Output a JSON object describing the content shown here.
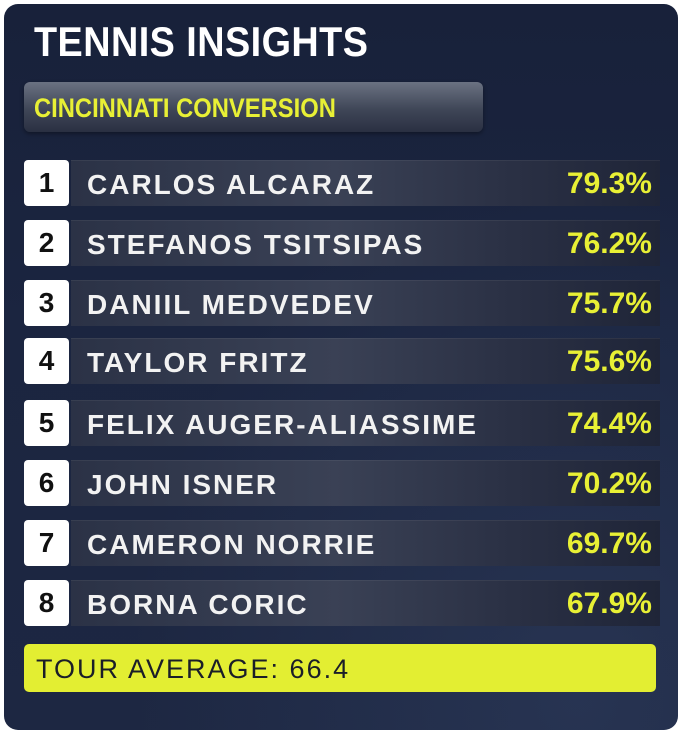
{
  "header": {
    "title": "TENNIS INSIGHTS",
    "subtitle": "CINCINNATI CONVERSION"
  },
  "rankings": [
    {
      "rank": "1",
      "name": "CARLOS ALCARAZ",
      "pct": "79.3%"
    },
    {
      "rank": "2",
      "name": "STEFANOS TSITSIPAS",
      "pct": "76.2%"
    },
    {
      "rank": "3",
      "name": "DANIIL MEDVEDEV",
      "pct": "75.7%"
    },
    {
      "rank": "4",
      "name": "TAYLOR FRITZ",
      "pct": "75.6%"
    },
    {
      "rank": "5",
      "name": "FELIX AUGER-ALIASSIME",
      "pct": "74.4%"
    },
    {
      "rank": "6",
      "name": "JOHN ISNER",
      "pct": "70.2%"
    },
    {
      "rank": "7",
      "name": "CAMERON NORRIE",
      "pct": "69.7%"
    },
    {
      "rank": "8",
      "name": "BORNA CORIC",
      "pct": "67.9%"
    }
  ],
  "footer": {
    "tour_average": "TOUR AVERAGE: 66.4"
  },
  "colors": {
    "accent": "#e8f035",
    "background": "#1b2540",
    "text": "#ffffff"
  }
}
